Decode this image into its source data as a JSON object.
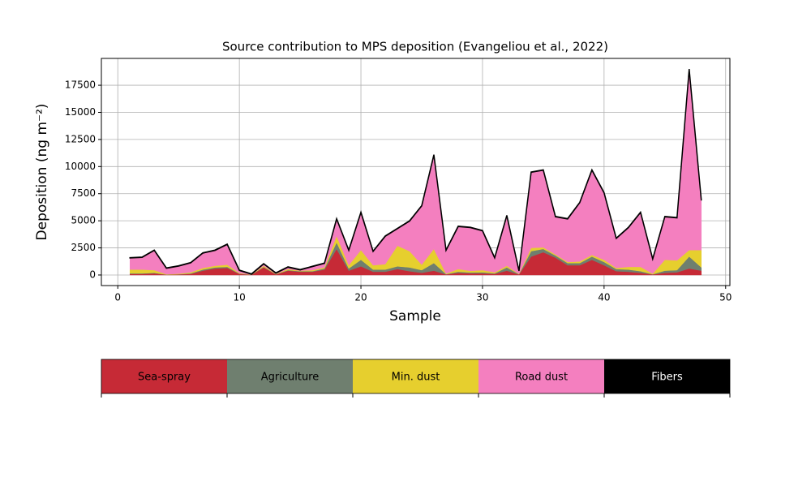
{
  "chart_data": {
    "type": "stacked_area",
    "title": "Source contribution to MPS deposition (Evangeliou et al., 2022)",
    "xlabel": "Sample",
    "ylabel": "Deposition (ng m⁻²)",
    "x": [
      1,
      2,
      3,
      4,
      5,
      6,
      7,
      8,
      9,
      10,
      11,
      12,
      13,
      14,
      15,
      16,
      17,
      18,
      19,
      20,
      21,
      22,
      23,
      24,
      25,
      26,
      27,
      28,
      29,
      30,
      31,
      32,
      33,
      34,
      35,
      36,
      37,
      38,
      39,
      40,
      41,
      42,
      43,
      44,
      45,
      46,
      47,
      48
    ],
    "series": [
      {
        "name": "Sea-spray",
        "color": "#c62a36",
        "values": [
          100,
          100,
          150,
          30,
          50,
          100,
          400,
          600,
          650,
          100,
          20,
          700,
          50,
          400,
          300,
          300,
          500,
          2400,
          400,
          800,
          300,
          300,
          550,
          350,
          200,
          400,
          50,
          200,
          150,
          150,
          100,
          400,
          50,
          1700,
          2100,
          1600,
          900,
          900,
          1400,
          900,
          350,
          300,
          200,
          50,
          200,
          250,
          600,
          400
        ]
      },
      {
        "name": "Agriculture",
        "color": "#6f7f6f",
        "values": [
          50,
          50,
          50,
          10,
          20,
          50,
          100,
          100,
          100,
          30,
          10,
          50,
          20,
          50,
          50,
          50,
          100,
          600,
          200,
          600,
          200,
          200,
          250,
          350,
          250,
          700,
          30,
          100,
          80,
          100,
          50,
          300,
          20,
          500,
          300,
          200,
          200,
          200,
          300,
          300,
          200,
          200,
          150,
          20,
          200,
          200,
          1100,
          300
        ]
      },
      {
        "name": "Min. dust",
        "color": "#e6cf2e",
        "values": [
          350,
          350,
          250,
          30,
          50,
          100,
          150,
          150,
          200,
          50,
          10,
          100,
          30,
          100,
          50,
          100,
          100,
          600,
          300,
          900,
          400,
          500,
          1900,
          1500,
          500,
          1300,
          50,
          250,
          150,
          200,
          100,
          150,
          30,
          300,
          150,
          100,
          100,
          150,
          150,
          200,
          100,
          250,
          400,
          50,
          1000,
          900,
          600,
          1600
        ]
      },
      {
        "name": "Road dust",
        "color": "#f47fbf",
        "values": [
          1070,
          1120,
          1820,
          550,
          700,
          870,
          1370,
          1420,
          1870,
          240,
          30,
          170,
          70,
          170,
          70,
          320,
          370,
          1570,
          1370,
          3470,
          1270,
          2570,
          1570,
          2770,
          5420,
          8670,
          2140,
          3920,
          3990,
          3620,
          1320,
          4620,
          270,
          6970,
          7120,
          3470,
          3970,
          5420,
          7820,
          6170,
          2720,
          3620,
          5020,
          1350,
          3970,
          3920,
          16670,
          4570
        ]
      },
      {
        "name": "Fibers",
        "color": "#000000",
        "values": [
          30,
          30,
          30,
          30,
          30,
          30,
          30,
          30,
          30,
          30,
          30,
          30,
          30,
          30,
          30,
          30,
          30,
          30,
          30,
          30,
          30,
          30,
          30,
          30,
          30,
          30,
          30,
          30,
          30,
          30,
          30,
          30,
          30,
          30,
          30,
          30,
          30,
          30,
          30,
          30,
          30,
          30,
          30,
          30,
          30,
          30,
          30,
          30
        ]
      }
    ],
    "xlim": [
      -1.35,
      50.35
    ],
    "xticks": [
      0,
      10,
      20,
      30,
      40,
      50
    ],
    "ylim": [
      -975,
      19975
    ],
    "yticks": [
      0,
      2500,
      5000,
      7500,
      10000,
      12500,
      15000,
      17500
    ],
    "grid": true
  }
}
